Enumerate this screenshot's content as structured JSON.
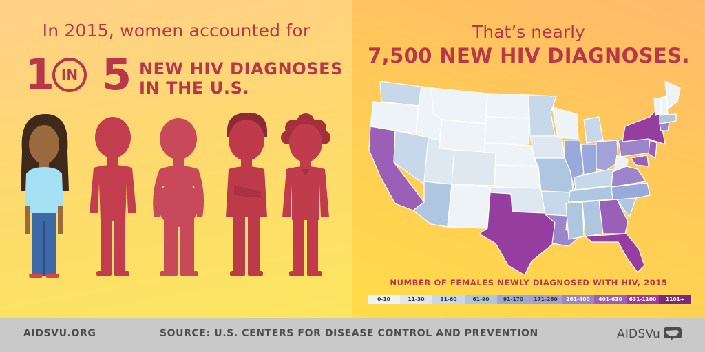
{
  "left": {
    "headline": "In 2015, women accounted for",
    "number_one": "1",
    "in_label": "IN",
    "number_five": "5",
    "new_hiv_line1": "NEW HIV DIAGNOSES",
    "new_hiv_line2": "IN THE U.S.",
    "ratio": {
      "highlighted": 1,
      "total": 5
    }
  },
  "right": {
    "line1": "That’s nearly",
    "line2": "7,500 NEW HIV DIAGNOSES.",
    "legend_title": "NUMBER OF FEMALES NEWLY DIAGNOSED WITH HIV, 2015",
    "legend": [
      {
        "label": "0-10",
        "color": "#eef3f7"
      },
      {
        "label": "11-30",
        "color": "#dde8f1"
      },
      {
        "label": "31-60",
        "color": "#c6d8ea"
      },
      {
        "label": "61-90",
        "color": "#afc6e1"
      },
      {
        "label": "91-170",
        "color": "#9aa9dc"
      },
      {
        "label": "171-260",
        "color": "#a3a2d6"
      },
      {
        "label": "261-400",
        "color": "#9c86c9"
      },
      {
        "label": "401-630",
        "color": "#9a5fb7"
      },
      {
        "label": "631-1100",
        "color": "#953e9f"
      },
      {
        "label": "1101+",
        "color": "#7a2a7e"
      }
    ]
  },
  "footer": {
    "site": "AIDSVU.ORG",
    "source": "SOURCE: U.S. CENTERS FOR DISEASE CONTROL AND PREVENTION",
    "logo_text": "AIDSVu"
  },
  "colors": {
    "accent": "#b8384a",
    "figure_red": "#c23e4f",
    "figure_shirt": "#a4e1f4",
    "figure_pants": "#3d6aa6",
    "figure_skin": "#9a6a3e",
    "footer_bg": "#c9c9c9"
  },
  "icons": [
    "woman-figure",
    "man-figure",
    "us-map-logo-icon"
  ]
}
